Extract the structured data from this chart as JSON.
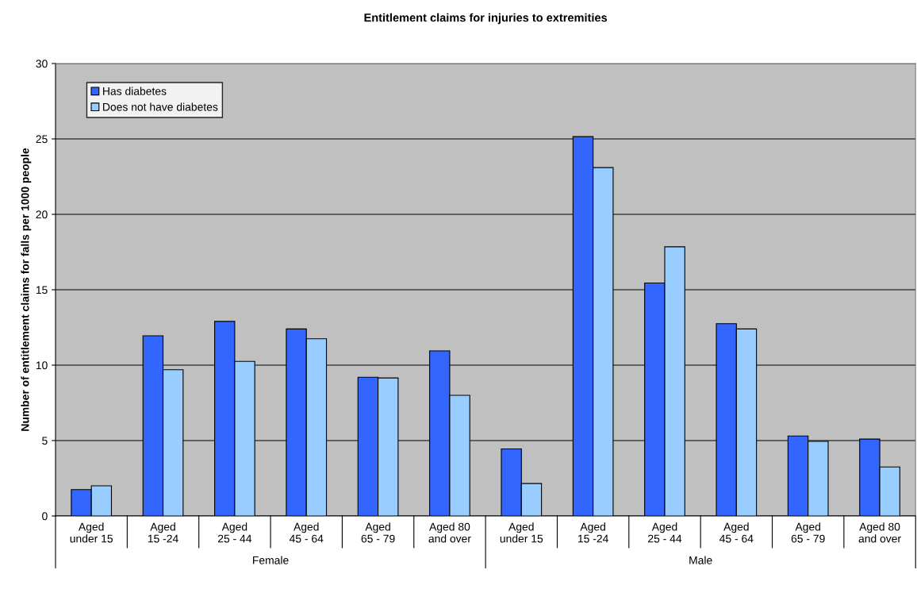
{
  "chart_data": {
    "type": "bar",
    "title": "Entitlement claims for injuries to extremities",
    "ylabel": "Number of entitlement claims for falls per 1000 people",
    "categories": [
      "Aged\nunder 15",
      "Aged\n15 -24",
      "Aged\n25 - 44",
      "Aged\n45 - 64",
      "Aged\n65 - 79",
      "Aged 80\nand over",
      "Aged\nunder 15",
      "Aged\n15 -24",
      "Aged\n25 - 44",
      "Aged\n45 - 64",
      "Aged\n65 - 79",
      "Aged 80\nand over"
    ],
    "series": [
      {
        "name": "Has diabetes",
        "color": "#3366ff",
        "values": [
          1.75,
          11.95,
          12.9,
          12.4,
          9.2,
          10.95,
          4.45,
          25.15,
          15.45,
          12.75,
          5.3,
          5.1
        ]
      },
      {
        "name": "Does not have diabetes",
        "color": "#99ccff",
        "values": [
          2.0,
          9.7,
          10.25,
          11.75,
          9.15,
          8.0,
          2.15,
          23.1,
          17.85,
          12.4,
          4.95,
          3.25
        ]
      }
    ],
    "annotations": [
      "Female",
      "Male"
    ],
    "ylim": [
      0,
      30
    ],
    "yticks": [
      0,
      5,
      10,
      15,
      20,
      25,
      30
    ],
    "grid": "y",
    "legend": "top left"
  }
}
